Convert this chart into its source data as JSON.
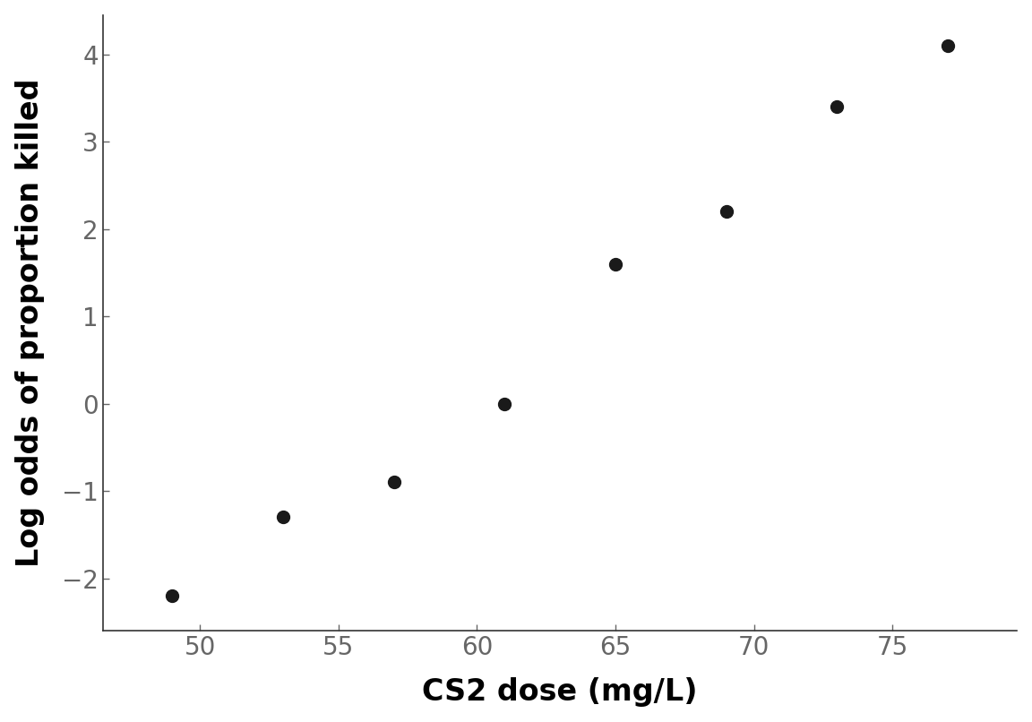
{
  "x": [
    49,
    53,
    57,
    61,
    65,
    69,
    73,
    77
  ],
  "y": [
    -2.2,
    -1.3,
    -0.9,
    0.0,
    1.6,
    2.2,
    3.4,
    4.1
  ],
  "xlabel": "CS2 dose (mg/L)",
  "ylabel": "Log odds of proportion killed",
  "xlim": [
    46.5,
    79.5
  ],
  "ylim": [
    -2.6,
    4.45
  ],
  "xticks": [
    50,
    55,
    60,
    65,
    70,
    75
  ],
  "yticks": [
    -2,
    -1,
    0,
    1,
    2,
    3,
    4
  ],
  "marker_color": "#1a1a1a",
  "marker_size": 100,
  "background_color": "#ffffff",
  "xlabel_fontsize": 24,
  "ylabel_fontsize": 24,
  "tick_fontsize": 20,
  "tick_color": "#666666",
  "spine_color": "#333333",
  "xlabel_fontweight": "bold",
  "ylabel_fontweight": "bold"
}
